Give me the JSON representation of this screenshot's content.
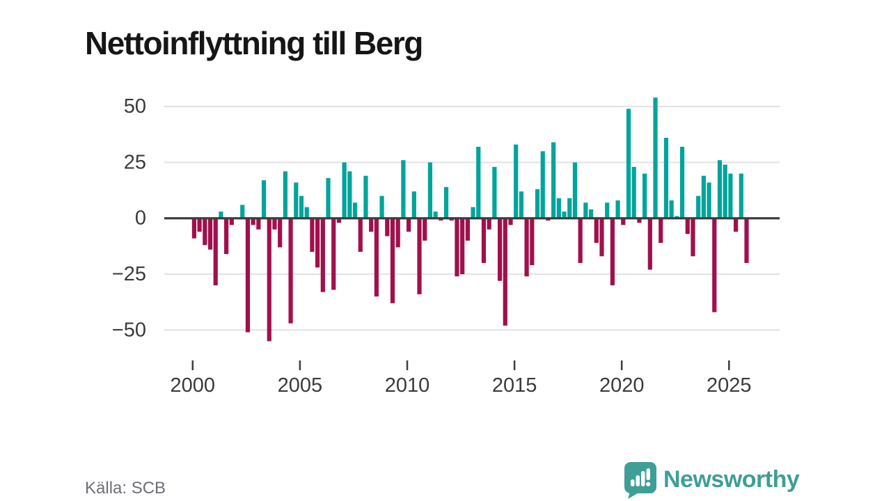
{
  "title": "Nettoinflyttning till Berg",
  "source": "Källa: SCB",
  "brand": {
    "name": "Newsworthy"
  },
  "colors": {
    "positive": "#00a49b",
    "negative": "#a0104c",
    "grid": "#e2e2e2",
    "zero_line": "#3d3d3d",
    "axis_text": "#3a3a3a",
    "tick": "#3d3d3d",
    "brand_teal": "#3f9e96",
    "title_text": "#161616",
    "source_text": "#6d6d76"
  },
  "chart_data": {
    "type": "bar",
    "title": "Nettoinflyttning till Berg",
    "x_unit": "quarter",
    "start": "2000 Q1",
    "end": "2025 Q4",
    "ylim": [
      -60,
      60
    ],
    "grid": true,
    "y_ticks": [
      {
        "value": 50,
        "label": "50"
      },
      {
        "value": 25,
        "label": "25"
      },
      {
        "value": 0,
        "label": "0"
      },
      {
        "value": -25,
        "label": "−25"
      },
      {
        "value": -50,
        "label": "−50"
      }
    ],
    "x_ticks": [
      {
        "year": 2000,
        "label": "2000"
      },
      {
        "year": 2005,
        "label": "2005"
      },
      {
        "year": 2010,
        "label": "2010"
      },
      {
        "year": 2015,
        "label": "2015"
      },
      {
        "year": 2020,
        "label": "2020"
      },
      {
        "year": 2025,
        "label": "2025"
      }
    ],
    "values": [
      -9,
      -6,
      -12,
      -14,
      -30,
      3,
      -16,
      -3,
      0,
      6,
      -51,
      -3,
      -5,
      17,
      -55,
      -5,
      -13,
      21,
      -47,
      16,
      10,
      5,
      -15,
      -22,
      -33,
      18,
      -32,
      -2,
      25,
      21,
      7,
      -15,
      19,
      -6,
      -35,
      10,
      -8,
      -38,
      -13,
      26,
      -6,
      12,
      -34,
      -10,
      25,
      3,
      -1,
      14,
      -1,
      -26,
      -25,
      -10,
      5,
      32,
      -20,
      -5,
      23,
      -28,
      -48,
      -3,
      33,
      12,
      -26,
      -21,
      13,
      30,
      -1,
      34,
      9,
      3,
      9,
      25,
      -20,
      7,
      4,
      -11,
      -17,
      7,
      -30,
      8,
      -3,
      49,
      23,
      -2,
      20,
      -23,
      54,
      -11,
      36,
      8,
      1,
      32,
      -7,
      -17,
      10,
      19,
      16,
      -42,
      26,
      24,
      20,
      -6,
      20,
      -20
    ]
  }
}
